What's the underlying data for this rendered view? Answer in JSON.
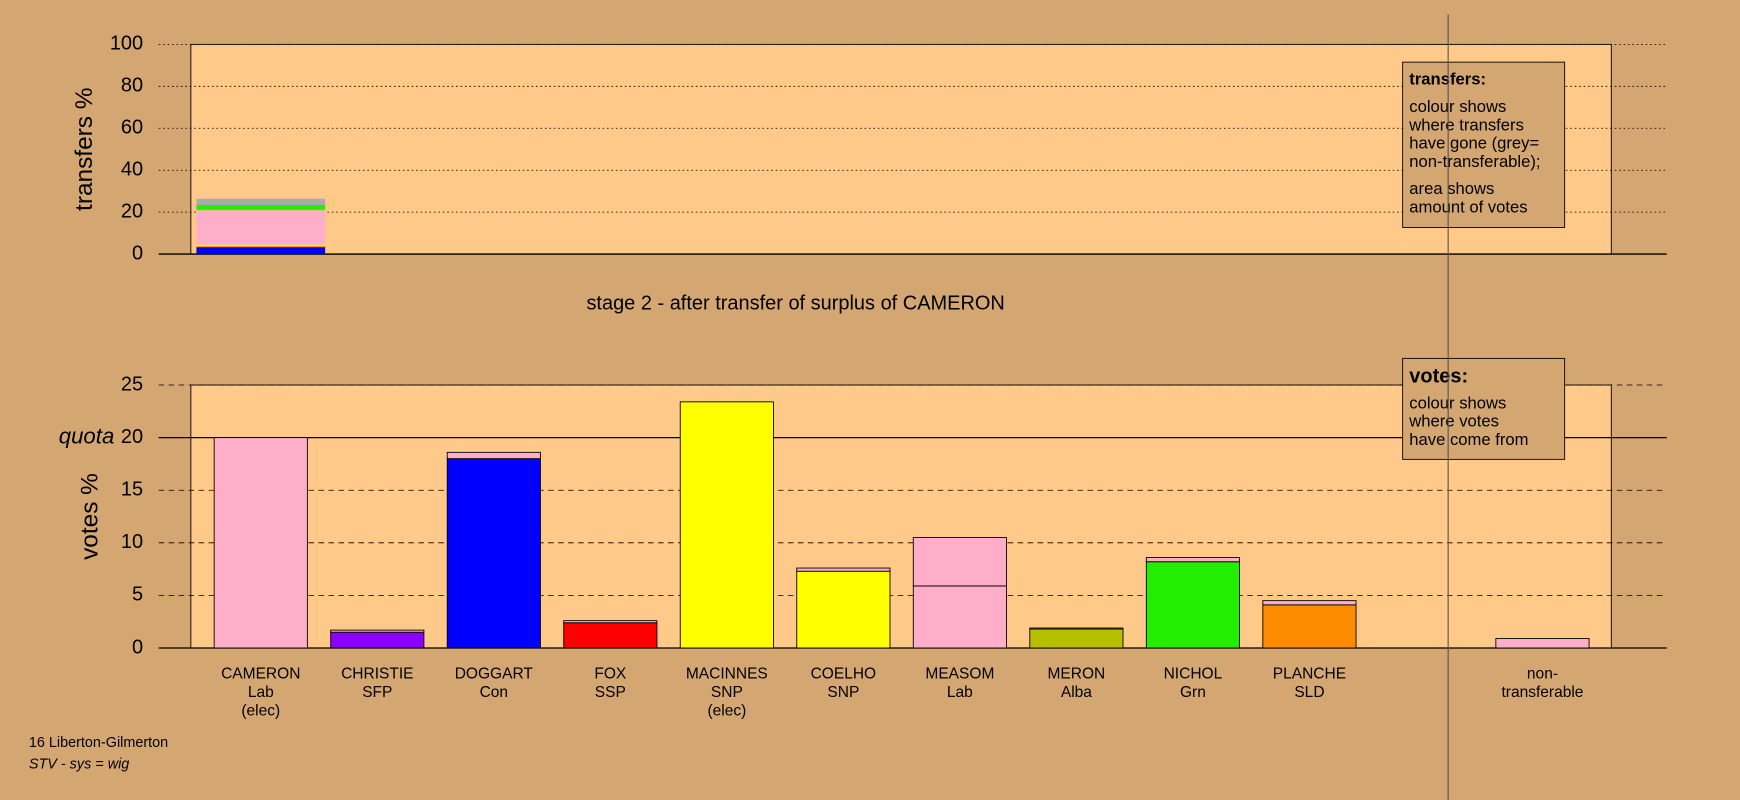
{
  "chart_data": [
    {
      "type": "bar",
      "stacked": true,
      "ylabel": "transfers %",
      "ylim": [
        0,
        100
      ],
      "yticks": [
        0,
        20,
        40,
        60,
        80,
        100
      ],
      "grid": true,
      "series": [
        {
          "color": "#0000ff",
          "values": [
            3.2
          ]
        },
        {
          "color": "#ff0000",
          "values": [
            0.4
          ]
        },
        {
          "color": "#ffff00",
          "values": [
            0.9
          ]
        },
        {
          "color": "#ffaec9",
          "values": [
            16.4
          ]
        },
        {
          "color": "#b5c000",
          "values": [
            0.3
          ]
        },
        {
          "color": "#22ee00",
          "values": [
            2.2
          ]
        },
        {
          "color": "#aaaaaa",
          "values": [
            3.0
          ]
        }
      ],
      "legend_box": {
        "title": "transfers:",
        "lines": [
          "colour shows",
          "where transfers",
          "have gone (grey=",
          "non-transferable);"
        ],
        "lines2": [
          "area shows",
          "amount of votes"
        ]
      }
    },
    {
      "type": "bar",
      "stacked": true,
      "ylabel": "votes %",
      "ylim": [
        0,
        25
      ],
      "yticks": [
        0,
        5,
        10,
        15,
        20,
        25
      ],
      "grid": true,
      "quota": {
        "value": 20,
        "label": "quota"
      },
      "categories": [
        [
          "CAMERON",
          "Lab",
          "(elec)"
        ],
        [
          "CHRISTIE",
          "SFP"
        ],
        [
          "DOGGART",
          "Con"
        ],
        [
          "FOX",
          "SSP"
        ],
        [
          "MACINNES",
          "SNP",
          "(elec)"
        ],
        [
          "COELHO",
          "SNP"
        ],
        [
          "MEASOM",
          "Lab"
        ],
        [
          "MERON",
          "Alba"
        ],
        [
          "NICHOL",
          "Grn"
        ],
        [
          "PLANCHE",
          "SLD"
        ],
        [
          "non-",
          "transferable"
        ]
      ],
      "series": [
        {
          "colors": [
            "#ffaec9",
            "#8b00ff",
            "#0000ff",
            "#ff0000",
            "#ffff00",
            "#ffff00",
            "#ffaec9",
            "#b5c000",
            "#22ee00",
            "#ff8c00",
            "#aaaaaa"
          ],
          "values": [
            20,
            1.5,
            18.0,
            2.4,
            23.4,
            7.3,
            5.9,
            1.8,
            8.2,
            4.1,
            0
          ]
        },
        {
          "color": "#ffaec9",
          "values": [
            0,
            0.2,
            0.6,
            0.2,
            0,
            0.3,
            4.6,
            0.1,
            0.4,
            0.4,
            0.9
          ]
        }
      ],
      "legend_box": {
        "title": "votes:",
        "lines": [
          "colour shows",
          "where votes",
          "have come from"
        ]
      }
    }
  ],
  "stage_title": "stage 2 - after transfer of surplus of CAMERON",
  "footer": {
    "constituency": "16 Liberton-Gilmerton",
    "system": "STV - sys = wig"
  }
}
